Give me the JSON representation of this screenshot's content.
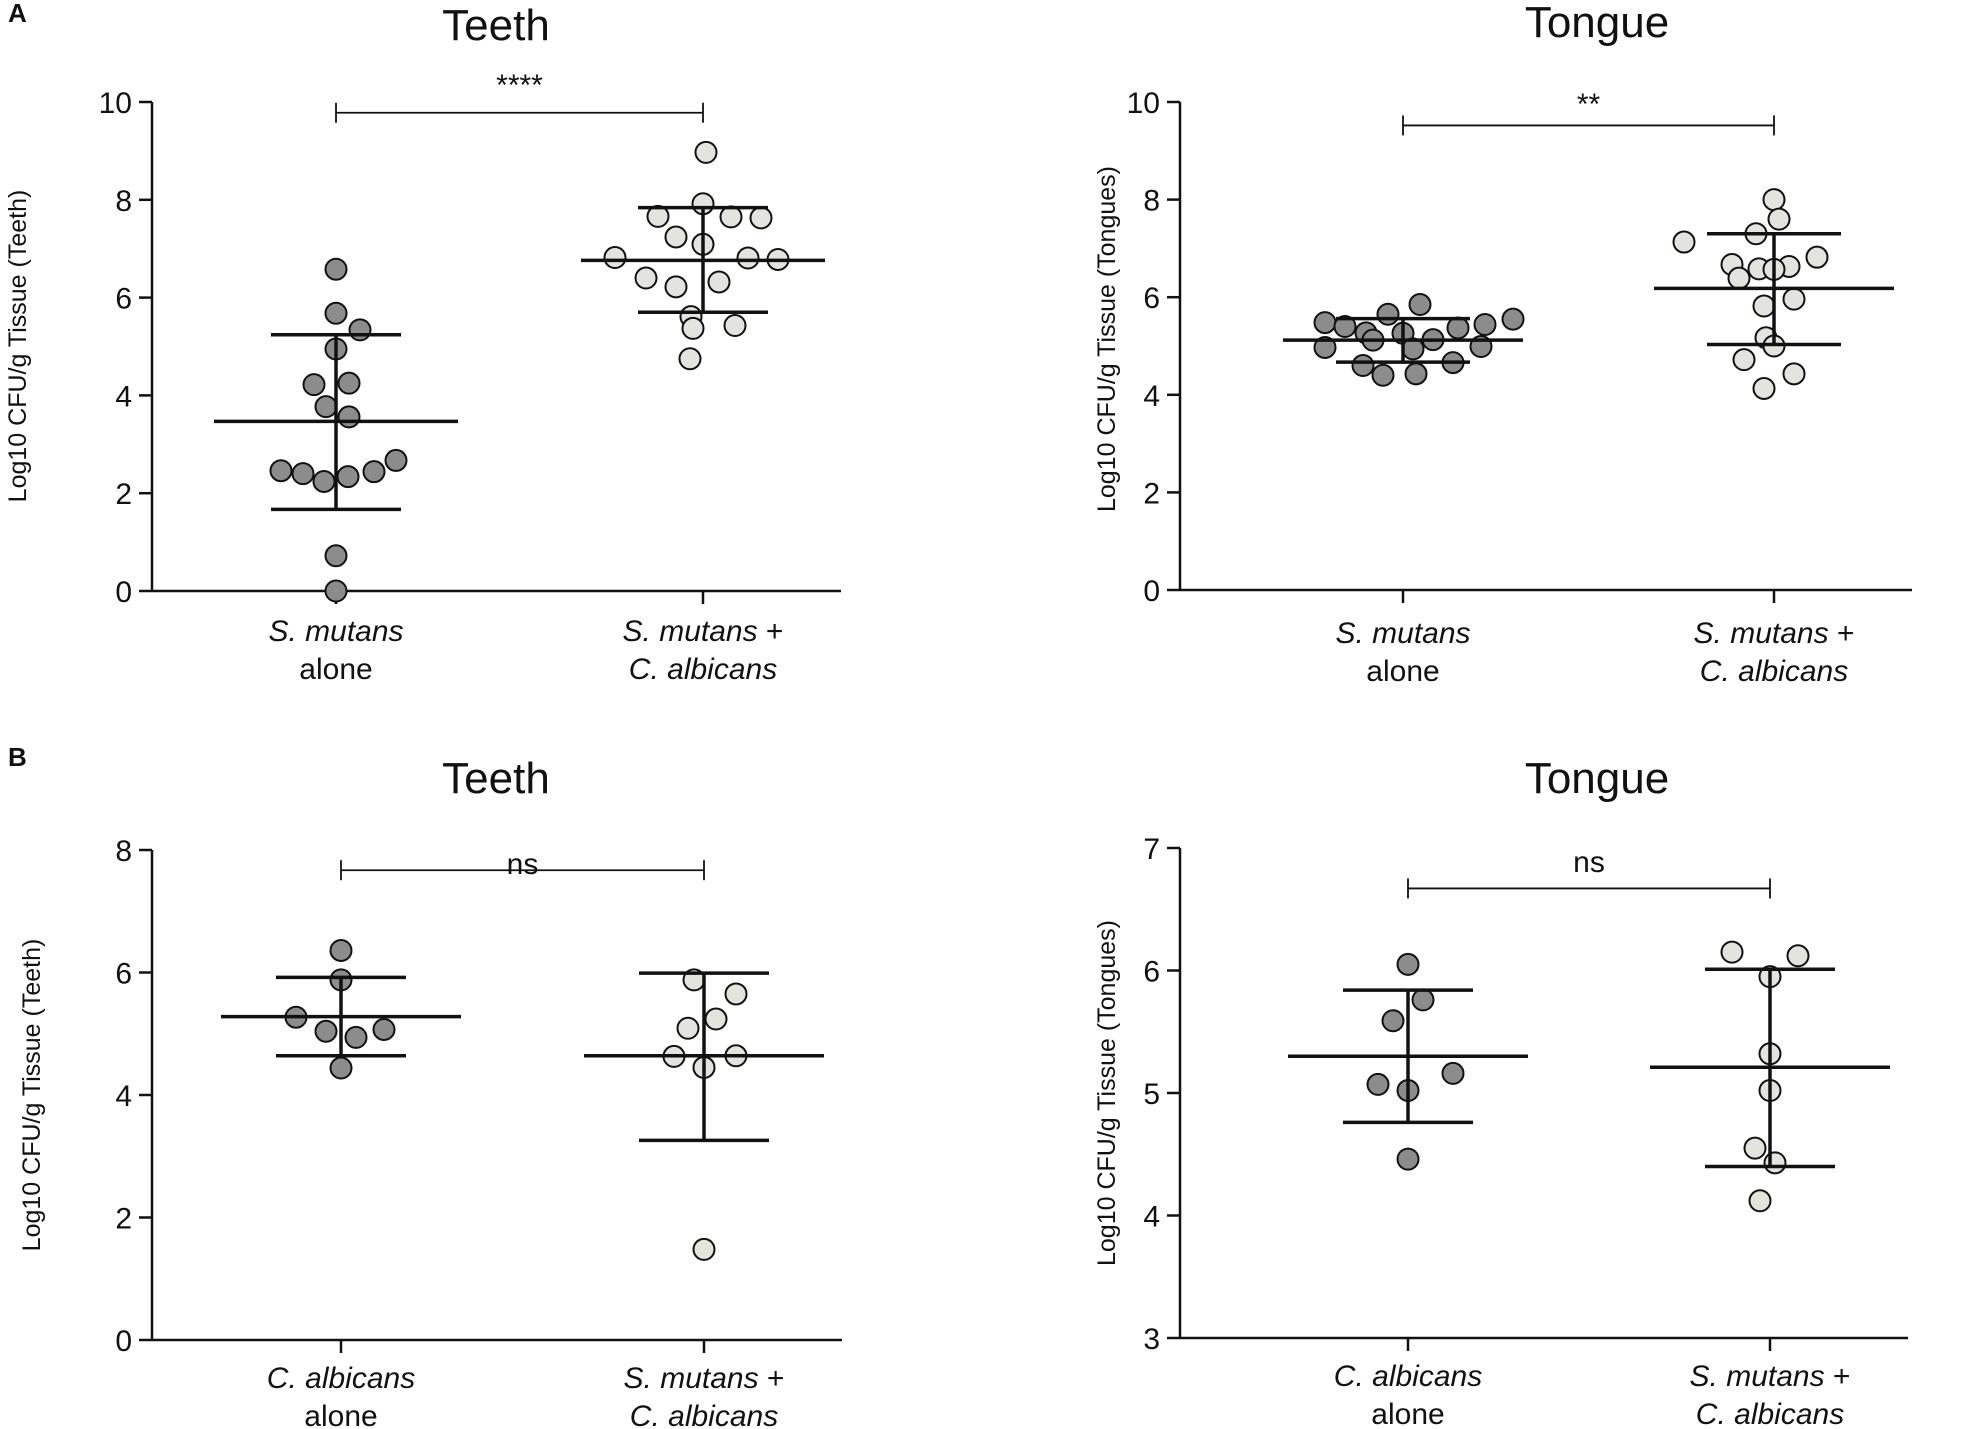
{
  "figure": {
    "panel_labels": [
      "A",
      "B"
    ]
  },
  "chart_data": [
    {
      "type": "scatter",
      "panel": "A",
      "title": "Teeth",
      "xlabel": "",
      "ylabel": "Log10 CFU/g Tissue (Teeth)",
      "ylim": [
        0,
        10
      ],
      "yticks": [
        0,
        2,
        4,
        6,
        8,
        10
      ],
      "grid": false,
      "categories": [
        {
          "line1": "S. mutans",
          "line1_italic": "S. mutans",
          "line1_plain": "",
          "line2": "alone",
          "line2_italic": "",
          "line2_plain": "alone"
        },
        {
          "line1": "S. mutans +",
          "line1_italic": "S. mutans",
          "line1_plain": " +",
          "line2": "C. albicans",
          "line2_italic": "C. albicans",
          "line2_plain": ""
        }
      ],
      "series": [
        {
          "name": "S. mutans alone",
          "color": "#8c8c8c",
          "mean": 3.47,
          "sd_low": 1.67,
          "sd_high": 5.24,
          "points": [
            6.58,
            5.68,
            5.34,
            4.95,
            4.25,
            4.22,
            3.77,
            3.56,
            2.67,
            2.46,
            2.44,
            2.4,
            2.34,
            2.24,
            0.72,
            0.0
          ],
          "offsets": [
            0,
            0,
            24,
            0,
            13,
            -22,
            -10,
            13,
            60,
            -55,
            38,
            -33,
            12,
            -12,
            0,
            0
          ]
        },
        {
          "name": "S. mutans + C. albicans",
          "color": "#e4e4df",
          "mean": 6.76,
          "sd_low": 5.7,
          "sd_high": 7.84,
          "points": [
            8.97,
            7.92,
            7.66,
            7.65,
            7.63,
            7.24,
            7.09,
            6.82,
            6.81,
            6.78,
            6.4,
            6.32,
            6.22,
            5.61,
            5.43,
            5.37,
            4.75
          ],
          "offsets": [
            3,
            0,
            -45,
            28,
            58,
            -27,
            0,
            -88,
            45,
            75,
            -57,
            16,
            -27,
            -12,
            32,
            -10,
            -13
          ]
        }
      ],
      "significance": "****",
      "bracket_value": 9.78
    },
    {
      "type": "scatter",
      "panel": "A",
      "title": "Tongue",
      "xlabel": "",
      "ylabel": "Log10 CFU/g Tissue (Tongues)",
      "ylim": [
        0,
        10
      ],
      "yticks": [
        0,
        2,
        4,
        6,
        8,
        10
      ],
      "grid": false,
      "categories": [
        {
          "line1": "S. mutans",
          "line1_italic": "S. mutans",
          "line1_plain": "",
          "line2": "alone",
          "line2_italic": "",
          "line2_plain": "alone"
        },
        {
          "line1": "S. mutans +",
          "line1_italic": "S. mutans",
          "line1_plain": " +",
          "line2": "C. albicans",
          "line2_italic": "C. albicans",
          "line2_plain": ""
        }
      ],
      "series": [
        {
          "name": "S. mutans alone",
          "color": "#8c8c8c",
          "mean": 5.12,
          "sd_low": 4.67,
          "sd_high": 5.56,
          "points": [
            5.85,
            5.65,
            5.55,
            5.48,
            5.44,
            5.4,
            5.37,
            5.27,
            5.26,
            5.13,
            5.12,
            4.99,
            4.97,
            4.94,
            4.66,
            4.6,
            4.43,
            4.4
          ],
          "offsets": [
            17,
            -15,
            110,
            -78,
            82,
            -58,
            55,
            -37,
            0,
            30,
            -30,
            78,
            -78,
            10,
            50,
            -40,
            13,
            -20
          ]
        },
        {
          "name": "S. mutans + C. albicans",
          "color": "#e4e4df",
          "mean": 6.18,
          "sd_low": 5.03,
          "sd_high": 7.3,
          "points": [
            8.0,
            7.6,
            7.3,
            7.13,
            6.82,
            6.67,
            6.63,
            6.58,
            6.57,
            6.39,
            5.96,
            5.82,
            5.17,
            5.0,
            4.72,
            4.43,
            4.13
          ],
          "offsets": [
            0,
            5,
            -18,
            -90,
            43,
            -42,
            15,
            -15,
            0,
            -35,
            20,
            -10,
            -8,
            0,
            -30,
            20,
            -10
          ]
        }
      ],
      "significance": "**",
      "bracket_value": 9.52
    },
    {
      "type": "scatter",
      "panel": "B",
      "title": "Teeth",
      "xlabel": "",
      "ylabel": "Log10 CFU/g Tissue (Teeth)",
      "ylim": [
        0,
        8
      ],
      "yticks": [
        0,
        2,
        4,
        6,
        8
      ],
      "grid": false,
      "categories": [
        {
          "line1": "C. albicans",
          "line1_italic": "C. albicans",
          "line1_plain": "",
          "line2": "alone",
          "line2_italic": "",
          "line2_plain": "alone"
        },
        {
          "line1": "S. mutans +",
          "line1_italic": "S. mutans",
          "line1_plain": " +",
          "line2": "C. albicans",
          "line2_italic": "C. albicans",
          "line2_plain": ""
        }
      ],
      "series": [
        {
          "name": "C. albicans alone",
          "color": "#8c8c8c",
          "mean": 5.28,
          "sd_low": 4.64,
          "sd_high": 5.92,
          "points": [
            6.36,
            5.88,
            5.27,
            5.07,
            5.04,
            4.94,
            4.44
          ],
          "offsets": [
            0,
            0,
            -45,
            43,
            -15,
            15,
            0
          ]
        },
        {
          "name": "S. mutans + C. albicans",
          "color": "#e4e4df",
          "mean": 4.64,
          "sd_low": 3.26,
          "sd_high": 5.99,
          "points": [
            5.88,
            5.65,
            5.24,
            5.09,
            4.64,
            4.63,
            4.45,
            1.48
          ],
          "offsets": [
            -10,
            32,
            12,
            -16,
            32,
            -30,
            0,
            0
          ]
        }
      ],
      "significance": "ns",
      "bracket_value": 7.67
    },
    {
      "type": "scatter",
      "panel": "B",
      "title": "Tongue",
      "xlabel": "",
      "ylabel": "Log10 CFU/g Tissue (Tongues)",
      "ylim": [
        3,
        7
      ],
      "yticks": [
        3,
        4,
        5,
        6,
        7
      ],
      "grid": false,
      "categories": [
        {
          "line1": "C. albicans",
          "line1_italic": "C. albicans",
          "line1_plain": "",
          "line2": "alone",
          "line2_italic": "",
          "line2_plain": "alone"
        },
        {
          "line1": "S. mutans +",
          "line1_italic": "S. mutans",
          "line1_plain": " +",
          "line2": "C. albicans",
          "line2_italic": "C. albicans",
          "line2_plain": ""
        }
      ],
      "series": [
        {
          "name": "C. albicans alone",
          "color": "#8c8c8c",
          "mean": 5.3,
          "sd_low": 4.76,
          "sd_high": 5.84,
          "points": [
            6.05,
            5.76,
            5.59,
            5.16,
            5.07,
            5.02,
            4.46
          ],
          "offsets": [
            0,
            15,
            -15,
            45,
            -30,
            0,
            0
          ]
        },
        {
          "name": "S. mutans + C. albicans",
          "color": "#e4e4df",
          "mean": 5.21,
          "sd_low": 4.4,
          "sd_high": 6.01,
          "points": [
            6.15,
            6.12,
            5.95,
            5.32,
            5.02,
            4.55,
            4.43,
            4.12
          ],
          "offsets": [
            -38,
            28,
            0,
            0,
            0,
            -15,
            5,
            -10
          ]
        }
      ],
      "significance": "ns",
      "bracket_value": 6.67
    }
  ]
}
